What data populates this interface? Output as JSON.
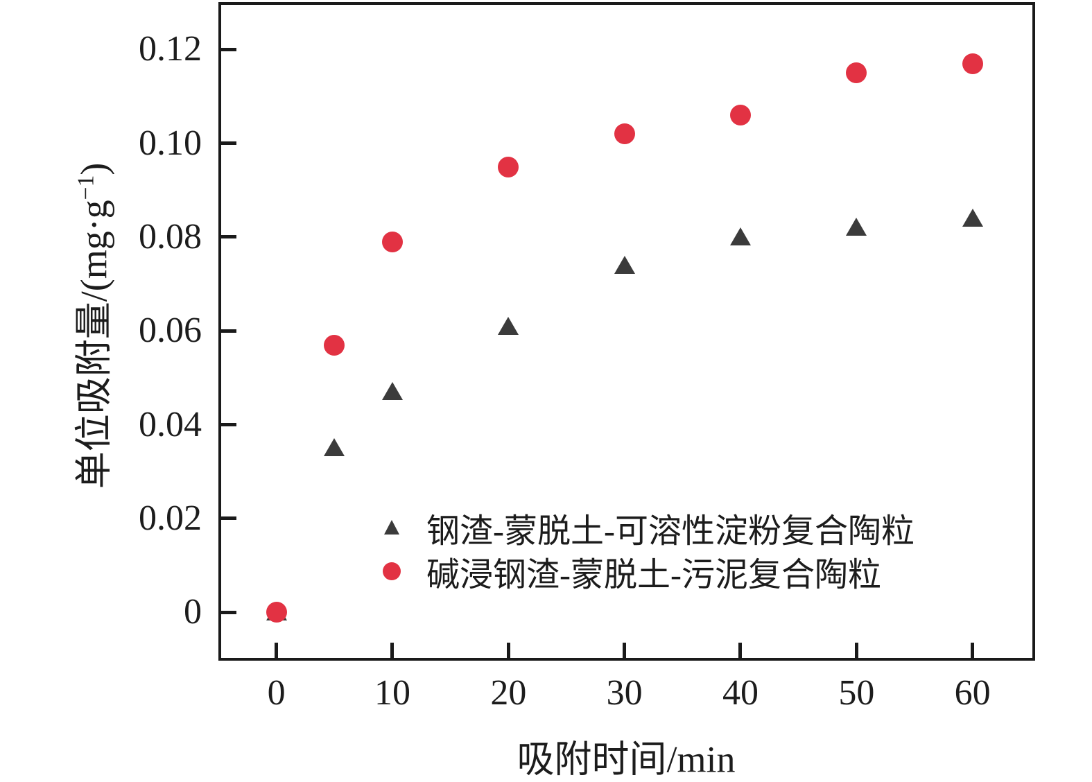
{
  "chart_data": {
    "type": "scatter",
    "title": "",
    "xlabel": "吸附时间/min",
    "ylabel": "单位吸附量/(mg·g⁻¹)",
    "ylabel_parts": {
      "main": "单位吸附量/(mg·g",
      "sup": "−1",
      "close": ")"
    },
    "xlim": [
      -5,
      65.4
    ],
    "ylim": [
      -0.0103,
      0.1301
    ],
    "x_ticks": [
      0,
      10,
      20,
      30,
      40,
      50,
      60
    ],
    "x_tick_labels": [
      "0",
      "10",
      "20",
      "30",
      "40",
      "50",
      "60"
    ],
    "y_ticks": [
      0,
      0.02,
      0.04,
      0.06,
      0.08,
      0.1,
      0.12
    ],
    "y_tick_labels": [
      "0",
      "0.02",
      "0.04",
      "0.06",
      "0.08",
      "0.10",
      "0.12"
    ],
    "grid": false,
    "legend_position": "inside-lower-middle",
    "axis_color": "#1a1a1a",
    "series": [
      {
        "name": "钢渣-蒙脱土-可溶性淀粉复合陶粒",
        "marker": "triangle",
        "color": "#3b3b3b",
        "x": [
          0,
          5,
          10,
          20,
          30,
          40,
          50,
          60
        ],
        "y": [
          0,
          0.035,
          0.047,
          0.061,
          0.074,
          0.08,
          0.082,
          0.084
        ]
      },
      {
        "name": "碱浸钢渣-蒙脱土-污泥复合陶粒",
        "marker": "circle",
        "color": "#e23243",
        "x": [
          0,
          5,
          10,
          20,
          30,
          40,
          50,
          60
        ],
        "y": [
          0,
          0.057,
          0.079,
          0.095,
          0.102,
          0.106,
          0.115,
          0.117
        ]
      }
    ]
  }
}
